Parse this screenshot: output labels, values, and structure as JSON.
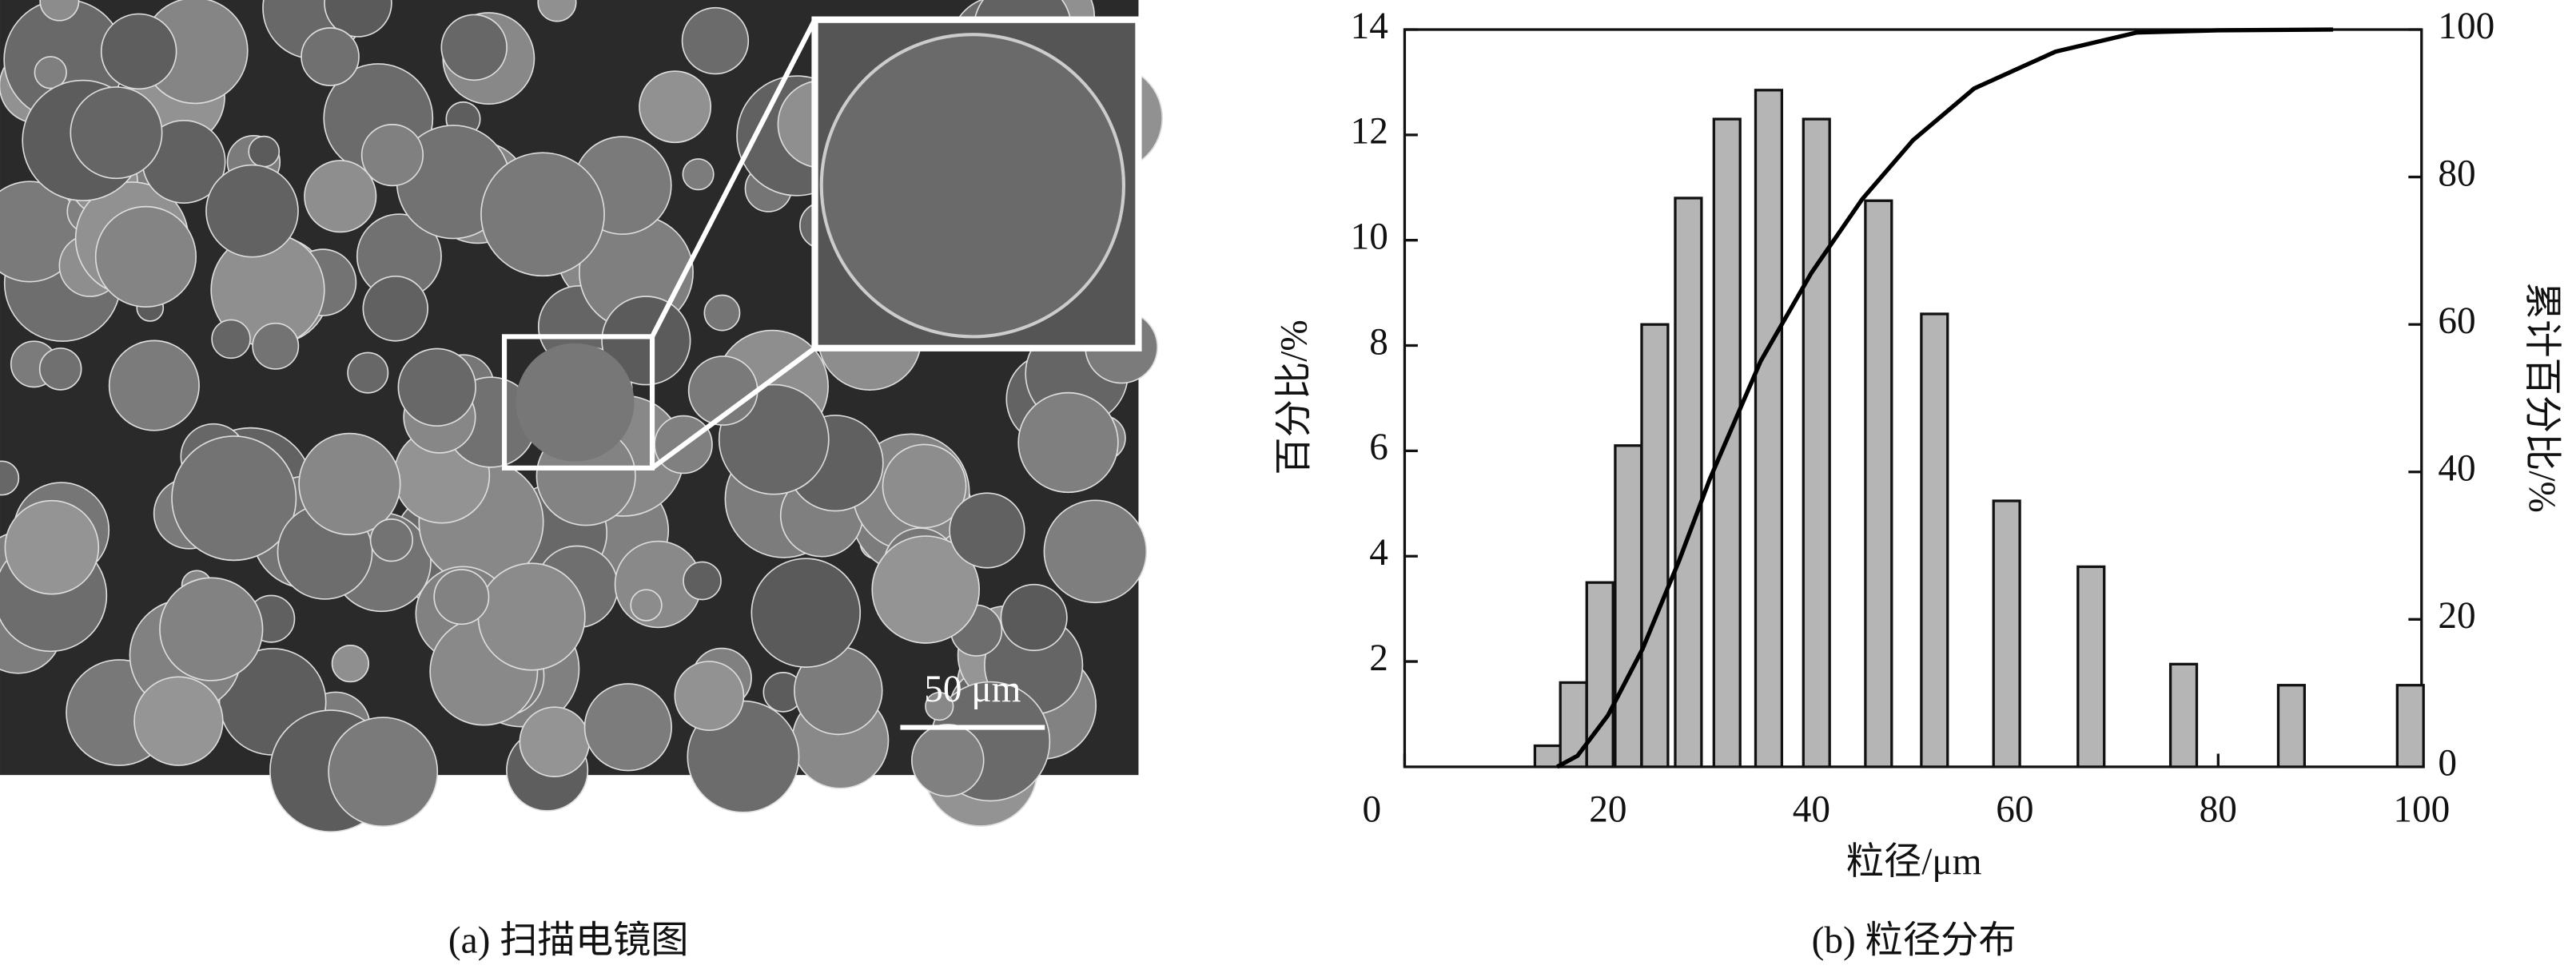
{
  "panel_a": {
    "caption": "(a) 扫描电镜图",
    "scale_bar": "50 μm"
  },
  "chart_data": {
    "type": "bar",
    "caption": "(b) 粒径分布",
    "xlabel": "粒径/μm",
    "ylabel": "百分比/%",
    "y2label": "累计百分比/%",
    "xlim": [
      0,
      100
    ],
    "xticks": [
      0,
      20,
      40,
      60,
      80,
      100
    ],
    "ylim": [
      0,
      14
    ],
    "yticks": [
      2,
      4,
      6,
      8,
      10,
      12,
      14
    ],
    "y2lim": [
      0,
      100
    ],
    "y2ticks": [
      0,
      20,
      40,
      60,
      80,
      100
    ],
    "grid": false,
    "series": [
      {
        "type": "bar",
        "color": "#b5b5b5",
        "x": [
          14.1,
          16.6,
          19.2,
          22.0,
          24.6,
          27.9,
          31.7,
          35.8,
          40.5,
          46.6,
          52.1,
          59.2,
          67.5,
          76.6,
          87.2,
          98.9
        ],
        "values": [
          0.4,
          1.6,
          3.5,
          6.1,
          8.4,
          10.8,
          12.3,
          12.85,
          12.3,
          10.75,
          8.6,
          5.05,
          3.8,
          1.95,
          1.55,
          1.55
        ]
      },
      {
        "type": "line",
        "color": "#000000",
        "axis": "y2",
        "x": [
          15,
          17,
          20,
          23.4,
          27,
          30,
          35,
          40,
          45,
          50,
          56,
          64,
          72,
          80,
          91.3
        ],
        "values": [
          0,
          1.5,
          7,
          16,
          28,
          39,
          55,
          67,
          77,
          85,
          92,
          97,
          99.6,
          99.9,
          100
        ]
      }
    ]
  }
}
